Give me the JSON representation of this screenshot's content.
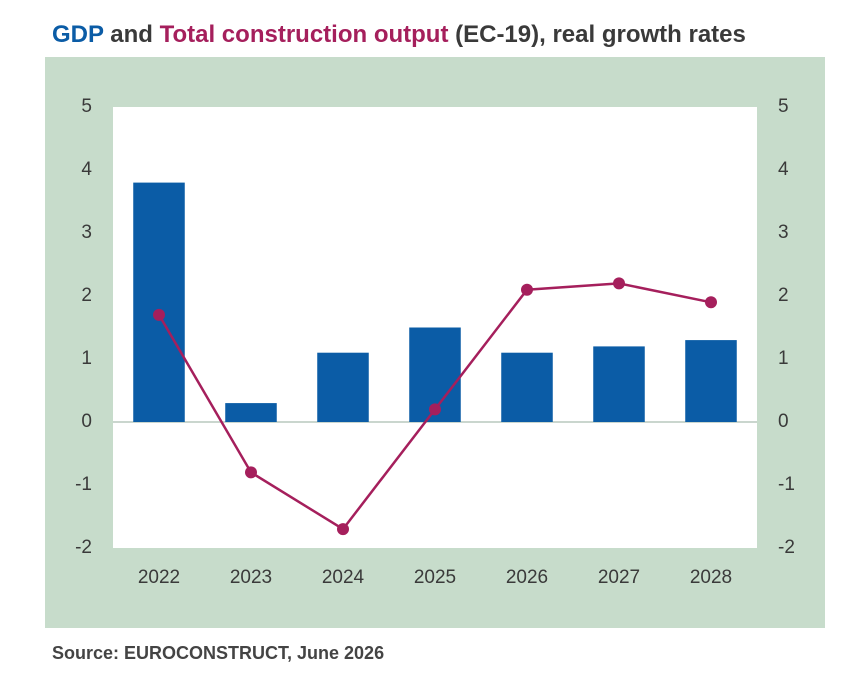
{
  "chart_data": {
    "type": "bar-line",
    "title_joiner": "and",
    "title_suffix": "(EC-19), real growth rates",
    "source": "Source: EUROCONSTRUCT, June 2026",
    "categories": [
      "2022",
      "2023",
      "2024",
      "2025",
      "2026",
      "2027",
      "2028"
    ],
    "series": [
      {
        "name": "GDP",
        "type": "bar",
        "color": "#0b5ca6",
        "values": [
          3.8,
          0.3,
          1.1,
          1.5,
          1.1,
          1.2,
          1.3
        ]
      },
      {
        "name": "Total construction output",
        "type": "line",
        "axis": "y2",
        "color": "#a51f5c",
        "values": [
          1.7,
          -0.8,
          -1.7,
          0.2,
          2.1,
          2.2,
          1.9
        ]
      }
    ],
    "ylim": [
      -2,
      5
    ],
    "yticks": [
      -2,
      -1,
      0,
      1,
      2,
      3,
      4,
      5
    ],
    "y2lim": [
      -2,
      5
    ],
    "y2ticks": [
      -2,
      -1,
      0,
      1,
      2,
      3,
      4,
      5
    ],
    "background": "#c7dccb"
  }
}
